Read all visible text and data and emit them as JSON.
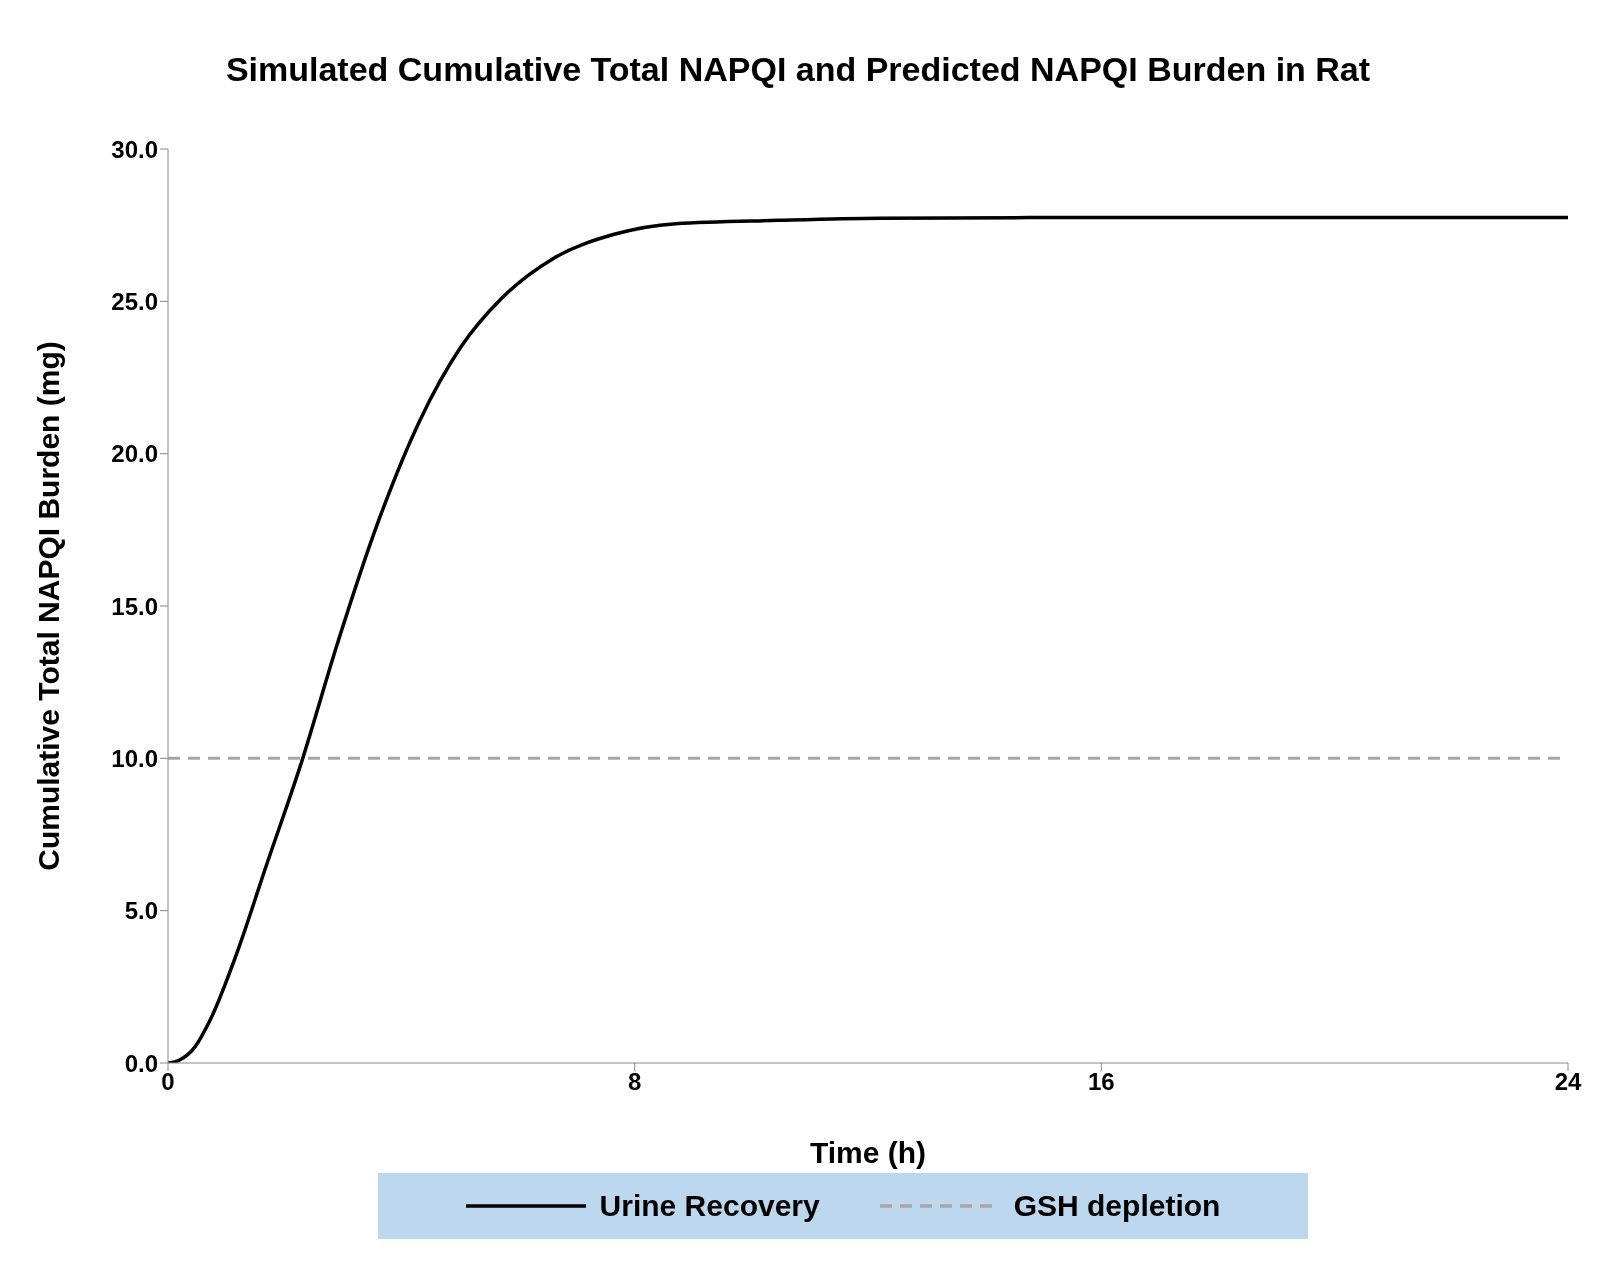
{
  "chart_data": {
    "type": "line",
    "title": "Simulated Cumulative Total NAPQI and Predicted NAPQI Burden in Rat",
    "xlabel": "Time (h)",
    "ylabel": "Cumulative Total NAPQI Burden (mg)",
    "xlim": [
      0,
      24
    ],
    "xticks": [
      0,
      8,
      16,
      24
    ],
    "ylim": [
      0,
      30
    ],
    "yticks": [
      {
        "value": 0,
        "label": "0.0"
      },
      {
        "value": 5,
        "label": "5.0"
      },
      {
        "value": 10,
        "label": "10.0"
      },
      {
        "value": 15,
        "label": "15.0"
      },
      {
        "value": 20,
        "label": "20.0"
      },
      {
        "value": 25,
        "label": "25.0"
      },
      {
        "value": 30,
        "label": "30.0"
      }
    ],
    "legend": "bottom",
    "marker": "none",
    "series": [
      {
        "name": "Urine Recovery",
        "color": "#000000",
        "line_style": "solid",
        "x": [
          0,
          0.2,
          0.46,
          0.72,
          1.16,
          1.68,
          2.3,
          2.91,
          3.61,
          4.32,
          5.02,
          5.72,
          6.6,
          7.65,
          8.7,
          10.46,
          12.2,
          16,
          20,
          24
        ],
        "values": [
          0,
          0.1,
          0.52,
          1.4,
          3.5,
          6.45,
          9.94,
          13.8,
          17.8,
          21.1,
          23.5,
          25.1,
          26.4,
          27.2,
          27.55,
          27.66,
          27.73,
          27.75,
          27.75,
          27.75
        ]
      },
      {
        "name": "GSH depletion",
        "color": "#a6a6a6",
        "line_style": "dashed",
        "x": [
          0,
          24
        ],
        "values": [
          10,
          10
        ]
      }
    ]
  }
}
